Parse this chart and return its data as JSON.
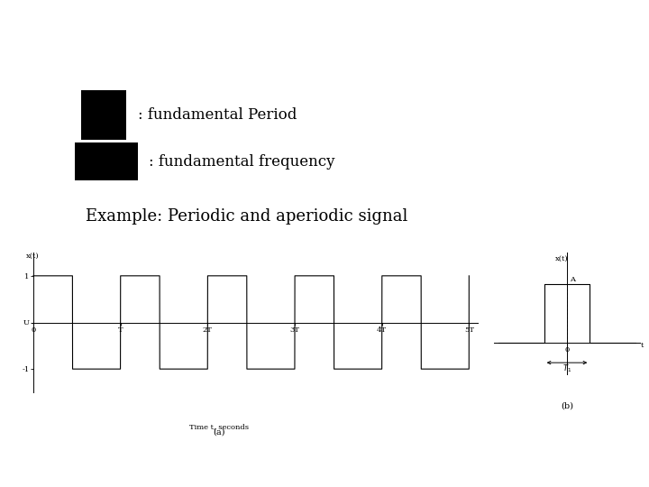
{
  "bg_color": "#ffffff",
  "title_text": "Example: Periodic and aperiodic signal",
  "title_fontsize": 13,
  "label1_text": ": fundamental Period",
  "label2_text": ": fundamental frequency",
  "label_fontsize": 12,
  "box1_color": "#000000",
  "box2_color": "#000000"
}
